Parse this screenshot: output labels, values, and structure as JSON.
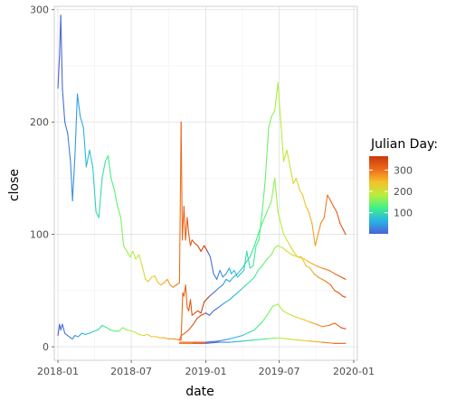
{
  "chart_data": {
    "type": "line",
    "xlabel": "date",
    "ylabel": "close",
    "x_ticks": [
      "2018-01",
      "2018-07",
      "2019-01",
      "2019-07",
      "2020-01"
    ],
    "y_ticks": [
      0,
      100,
      200,
      300
    ],
    "xlim": [
      "2017-12-23",
      "2020-01-10"
    ],
    "ylim": [
      -12,
      303
    ],
    "grid": true,
    "legend": {
      "title": "Julian Day:",
      "position": "right",
      "type": "colorbar",
      "range": [
        1,
        365
      ],
      "ticks": [
        100,
        200,
        300
      ],
      "palette": [
        "#4c61d6",
        "#29b3e6",
        "#3ff08a",
        "#b9ee3c",
        "#f4c12a",
        "#ee6a1c",
        "#c83a0c"
      ]
    },
    "series": [
      {
        "points": [
          [
            "2018-01-01",
            230
          ],
          [
            "2018-01-05",
            260
          ],
          [
            "2018-01-08",
            295
          ],
          [
            "2018-01-12",
            230
          ],
          [
            "2018-01-18",
            200
          ],
          [
            "2018-01-25",
            190
          ],
          [
            "2018-02-01",
            165
          ],
          [
            "2018-02-06",
            130
          ],
          [
            "2018-02-12",
            170
          ],
          [
            "2018-02-18",
            225
          ],
          [
            "2018-02-25",
            205
          ],
          [
            "2018-03-05",
            195
          ],
          [
            "2018-03-12",
            160
          ],
          [
            "2018-03-20",
            175
          ],
          [
            "2018-03-28",
            160
          ],
          [
            "2018-04-05",
            120
          ],
          [
            "2018-04-12",
            115
          ],
          [
            "2018-04-20",
            150
          ],
          [
            "2018-04-28",
            165
          ],
          [
            "2018-05-05",
            170
          ],
          [
            "2018-05-12",
            150
          ],
          [
            "2018-05-20",
            140
          ],
          [
            "2018-05-28",
            125
          ],
          [
            "2018-06-05",
            115
          ],
          [
            "2018-06-12",
            90
          ],
          [
            "2018-06-20",
            85
          ],
          [
            "2018-06-28",
            80
          ],
          [
            "2018-07-05",
            85
          ],
          [
            "2018-07-12",
            78
          ],
          [
            "2018-07-20",
            82
          ],
          [
            "2018-07-28",
            72
          ],
          [
            "2018-08-05",
            60
          ],
          [
            "2018-08-12",
            58
          ],
          [
            "2018-08-20",
            62
          ],
          [
            "2018-08-28",
            63
          ],
          [
            "2018-09-05",
            57
          ],
          [
            "2018-09-12",
            55
          ],
          [
            "2018-09-20",
            57
          ],
          [
            "2018-09-28",
            60
          ],
          [
            "2018-10-05",
            55
          ],
          [
            "2018-10-12",
            53
          ],
          [
            "2018-10-20",
            55
          ],
          [
            "2018-10-28",
            57
          ],
          [
            "2018-11-01",
            200
          ],
          [
            "2018-11-04",
            95
          ],
          [
            "2018-11-08",
            125
          ],
          [
            "2018-11-12",
            95
          ],
          [
            "2018-11-16",
            115
          ],
          [
            "2018-11-20",
            100
          ],
          [
            "2018-11-24",
            90
          ],
          [
            "2018-11-28",
            95
          ],
          [
            "2018-12-05",
            92
          ],
          [
            "2018-12-12",
            90
          ],
          [
            "2018-12-20",
            85
          ],
          [
            "2018-12-28",
            90
          ],
          [
            "2019-01-05",
            85
          ],
          [
            "2019-01-12",
            80
          ],
          [
            "2019-01-20",
            65
          ],
          [
            "2019-01-28",
            60
          ],
          [
            "2019-02-05",
            68
          ],
          [
            "2019-02-12",
            62
          ],
          [
            "2019-02-20",
            65
          ],
          [
            "2019-02-28",
            70
          ],
          [
            "2019-03-05",
            65
          ],
          [
            "2019-03-12",
            68
          ],
          [
            "2019-03-20",
            62
          ],
          [
            "2019-03-28",
            65
          ],
          [
            "2019-04-05",
            68
          ],
          [
            "2019-04-12",
            85
          ],
          [
            "2019-04-20",
            70
          ],
          [
            "2019-04-28",
            72
          ],
          [
            "2019-05-05",
            90
          ],
          [
            "2019-05-12",
            95
          ],
          [
            "2019-05-20",
            120
          ],
          [
            "2019-05-28",
            150
          ],
          [
            "2019-06-05",
            195
          ],
          [
            "2019-06-12",
            205
          ],
          [
            "2019-06-20",
            210
          ],
          [
            "2019-06-28",
            235
          ],
          [
            "2019-07-05",
            200
          ],
          [
            "2019-07-12",
            165
          ],
          [
            "2019-07-20",
            175
          ],
          [
            "2019-07-28",
            160
          ],
          [
            "2019-08-05",
            145
          ],
          [
            "2019-08-12",
            150
          ],
          [
            "2019-08-20",
            140
          ],
          [
            "2019-08-28",
            135
          ],
          [
            "2019-09-05",
            125
          ],
          [
            "2019-09-12",
            120
          ],
          [
            "2019-09-20",
            110
          ],
          [
            "2019-09-28",
            90
          ],
          [
            "2019-10-05",
            100
          ],
          [
            "2019-10-12",
            110
          ],
          [
            "2019-10-20",
            115
          ],
          [
            "2019-10-28",
            135
          ],
          [
            "2019-11-05",
            130
          ],
          [
            "2019-11-12",
            125
          ],
          [
            "2019-11-20",
            120
          ],
          [
            "2019-11-28",
            110
          ],
          [
            "2019-12-05",
            105
          ],
          [
            "2019-12-12",
            100
          ]
        ]
      },
      {
        "points": [
          [
            "2018-01-01",
            10
          ],
          [
            "2018-01-05",
            20
          ],
          [
            "2018-01-08",
            15
          ],
          [
            "2018-01-12",
            20
          ],
          [
            "2018-01-18",
            12
          ],
          [
            "2018-01-25",
            10
          ],
          [
            "2018-02-01",
            8
          ],
          [
            "2018-02-06",
            7
          ],
          [
            "2018-02-12",
            10
          ],
          [
            "2018-02-20",
            9
          ],
          [
            "2018-03-01",
            12
          ],
          [
            "2018-03-10",
            11
          ],
          [
            "2018-03-20",
            12
          ],
          [
            "2018-04-01",
            14
          ],
          [
            "2018-04-10",
            15
          ],
          [
            "2018-04-20",
            19
          ],
          [
            "2018-05-01",
            17
          ],
          [
            "2018-05-10",
            15
          ],
          [
            "2018-05-20",
            14
          ],
          [
            "2018-06-01",
            14
          ],
          [
            "2018-06-10",
            17
          ],
          [
            "2018-06-20",
            15
          ],
          [
            "2018-07-01",
            14
          ],
          [
            "2018-07-10",
            13
          ],
          [
            "2018-07-20",
            11
          ],
          [
            "2018-08-01",
            10
          ],
          [
            "2018-08-10",
            11
          ],
          [
            "2018-08-20",
            9
          ],
          [
            "2018-09-01",
            9
          ],
          [
            "2018-09-10",
            8
          ],
          [
            "2018-09-20",
            8
          ],
          [
            "2018-10-01",
            7
          ],
          [
            "2018-10-15",
            7
          ],
          [
            "2018-10-28",
            6
          ],
          [
            "2018-11-01",
            6
          ],
          [
            "2018-11-05",
            48
          ],
          [
            "2018-11-08",
            45
          ],
          [
            "2018-11-12",
            55
          ],
          [
            "2018-11-16",
            35
          ],
          [
            "2018-11-20",
            32
          ],
          [
            "2018-11-24",
            42
          ],
          [
            "2018-11-28",
            28
          ],
          [
            "2018-12-05",
            30
          ],
          [
            "2018-12-12",
            32
          ],
          [
            "2018-12-20",
            30
          ],
          [
            "2018-12-28",
            40
          ],
          [
            "2019-01-10",
            45
          ],
          [
            "2019-01-20",
            48
          ],
          [
            "2019-02-01",
            52
          ],
          [
            "2019-02-12",
            55
          ],
          [
            "2019-02-20",
            60
          ],
          [
            "2019-03-01",
            58
          ],
          [
            "2019-03-10",
            62
          ],
          [
            "2019-03-20",
            65
          ],
          [
            "2019-04-01",
            70
          ],
          [
            "2019-04-10",
            75
          ],
          [
            "2019-04-20",
            80
          ],
          [
            "2019-05-01",
            90
          ],
          [
            "2019-05-10",
            100
          ],
          [
            "2019-05-20",
            110
          ],
          [
            "2019-06-01",
            120
          ],
          [
            "2019-06-12",
            130
          ],
          [
            "2019-06-20",
            150
          ],
          [
            "2019-06-28",
            120
          ],
          [
            "2019-07-05",
            110
          ],
          [
            "2019-07-12",
            100
          ],
          [
            "2019-07-20",
            95
          ],
          [
            "2019-07-28",
            90
          ],
          [
            "2019-08-05",
            85
          ],
          [
            "2019-08-15",
            80
          ],
          [
            "2019-08-25",
            80
          ],
          [
            "2019-09-05",
            72
          ],
          [
            "2019-09-15",
            70
          ],
          [
            "2019-09-25",
            65
          ],
          [
            "2019-10-05",
            62
          ],
          [
            "2019-10-15",
            60
          ],
          [
            "2019-10-25",
            58
          ],
          [
            "2019-11-05",
            55
          ],
          [
            "2019-11-15",
            50
          ],
          [
            "2019-11-25",
            48
          ],
          [
            "2019-12-05",
            45
          ],
          [
            "2019-12-12",
            44
          ]
        ]
      },
      {
        "points": [
          [
            "2018-10-28",
            6
          ],
          [
            "2018-11-01",
            10
          ],
          [
            "2018-11-10",
            12
          ],
          [
            "2018-11-20",
            15
          ],
          [
            "2018-12-01",
            20
          ],
          [
            "2018-12-10",
            25
          ],
          [
            "2018-12-20",
            28
          ],
          [
            "2019-01-01",
            30
          ],
          [
            "2019-01-10",
            28
          ],
          [
            "2019-01-20",
            32
          ],
          [
            "2019-02-01",
            35
          ],
          [
            "2019-02-12",
            38
          ],
          [
            "2019-02-20",
            40
          ],
          [
            "2019-03-01",
            42
          ],
          [
            "2019-03-10",
            45
          ],
          [
            "2019-03-20",
            48
          ],
          [
            "2019-04-01",
            52
          ],
          [
            "2019-04-10",
            55
          ],
          [
            "2019-04-20",
            58
          ],
          [
            "2019-05-01",
            62
          ],
          [
            "2019-05-10",
            68
          ],
          [
            "2019-05-20",
            72
          ],
          [
            "2019-06-01",
            78
          ],
          [
            "2019-06-12",
            82
          ],
          [
            "2019-06-20",
            88
          ],
          [
            "2019-06-28",
            90
          ],
          [
            "2019-07-10",
            88
          ],
          [
            "2019-07-20",
            85
          ],
          [
            "2019-08-01",
            82
          ],
          [
            "2019-08-15",
            80
          ],
          [
            "2019-09-01",
            78
          ],
          [
            "2019-09-15",
            75
          ],
          [
            "2019-10-01",
            72
          ],
          [
            "2019-10-15",
            70
          ],
          [
            "2019-11-01",
            68
          ],
          [
            "2019-11-15",
            65
          ],
          [
            "2019-12-01",
            62
          ],
          [
            "2019-12-12",
            60
          ]
        ]
      },
      {
        "points": [
          [
            "2018-10-28",
            4
          ],
          [
            "2018-11-10",
            4
          ],
          [
            "2018-12-01",
            4
          ],
          [
            "2019-01-01",
            4
          ],
          [
            "2019-02-01",
            5
          ],
          [
            "2019-03-01",
            7
          ],
          [
            "2019-04-01",
            10
          ],
          [
            "2019-05-01",
            15
          ],
          [
            "2019-05-20",
            22
          ],
          [
            "2019-06-01",
            28
          ],
          [
            "2019-06-15",
            36
          ],
          [
            "2019-06-28",
            38
          ],
          [
            "2019-07-10",
            32
          ],
          [
            "2019-07-20",
            30
          ],
          [
            "2019-08-01",
            28
          ],
          [
            "2019-08-15",
            26
          ],
          [
            "2019-09-01",
            24
          ],
          [
            "2019-09-15",
            22
          ],
          [
            "2019-10-01",
            20
          ],
          [
            "2019-10-15",
            18
          ],
          [
            "2019-11-01",
            19
          ],
          [
            "2019-11-15",
            21
          ],
          [
            "2019-12-01",
            17
          ],
          [
            "2019-12-12",
            16
          ]
        ]
      },
      {
        "points": [
          [
            "2018-10-28",
            3
          ],
          [
            "2018-12-01",
            3
          ],
          [
            "2019-01-01",
            3
          ],
          [
            "2019-02-01",
            4
          ],
          [
            "2019-03-01",
            4
          ],
          [
            "2019-04-01",
            5
          ],
          [
            "2019-05-01",
            6
          ],
          [
            "2019-06-01",
            7
          ],
          [
            "2019-06-28",
            8
          ],
          [
            "2019-07-20",
            7
          ],
          [
            "2019-08-15",
            6
          ],
          [
            "2019-09-15",
            5
          ],
          [
            "2019-10-15",
            4
          ],
          [
            "2019-11-15",
            3
          ],
          [
            "2019-12-12",
            3
          ]
        ]
      }
    ]
  }
}
